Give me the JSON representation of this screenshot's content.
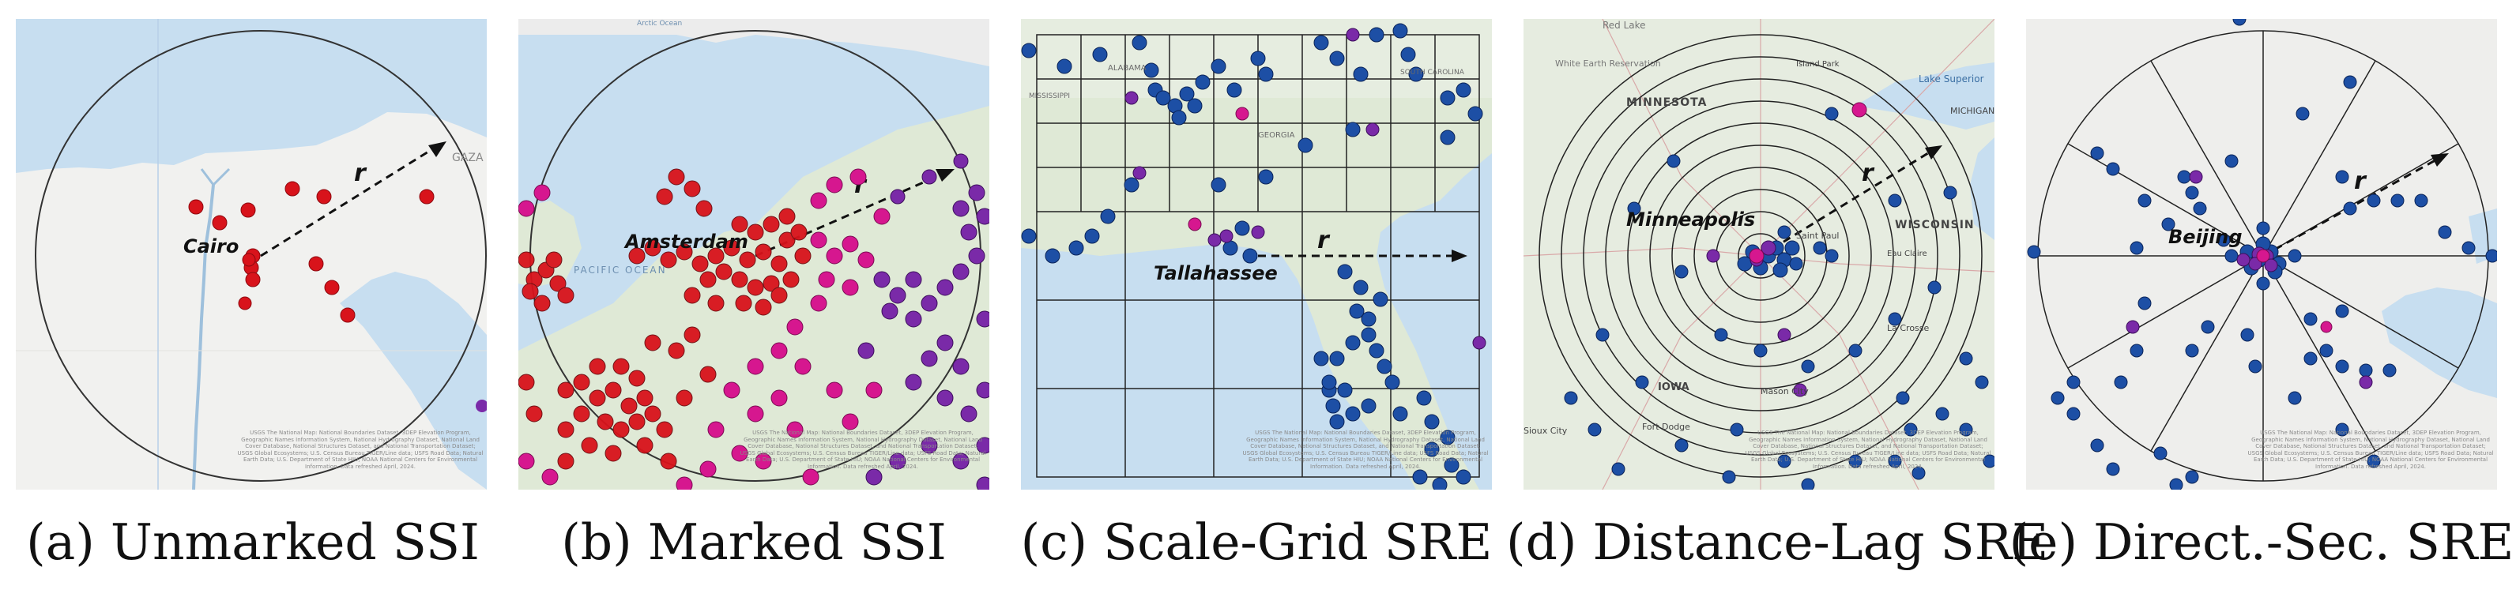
{
  "colors": {
    "water": "#c7def0",
    "land": "#f1f1ef",
    "land_green": "#dfe9d6",
    "red": "#d8131b",
    "magenta": "#d6178f",
    "purple": "#7a2aa8",
    "blue": "#1d4fa5",
    "navy": "#163a8c"
  },
  "panels": [
    {
      "id": "a",
      "city": "Cairo",
      "radius_label": "r",
      "caption": "(a) Unmarked SSI",
      "attribution": "USGS The National Map: National Boundaries Dataset, 3DEP Elevation Program, Geographic Names Information System, National Hydrography Dataset, National Land Cover Database, National Structures Dataset, and National Transportation Dataset; USGS Global Ecosystems; U.S. Census Bureau TIGER/Line data; USFS Road Data; Natural Earth Data; U.S. Department of State HIU; NOAA National Centers for Environmental Information. Data refreshed April, 2024.",
      "labels": [
        {
          "text": "GAZA"
        }
      ]
    },
    {
      "id": "b",
      "city": "Amsterdam",
      "radius_label": "r",
      "caption": "(b) Marked SSI",
      "attribution": "USGS The National Map: National Boundaries Dataset, 3DEP Elevation Program, Geographic Names Information System, National Hydrography Dataset, National Land Cover Database, National Structures Dataset, and National Transportation Dataset; USGS Global Ecosystems; U.S. Census Bureau TIGER/Line data; USFS Road Data; Natural Earth Data; U.S. Department of State HIU; NOAA National Centers for Environmental Information. Data refreshed April, 2024.",
      "labels": [
        {
          "text": "PACIFIC OCEAN"
        },
        {
          "text": "Arctic Ocean"
        }
      ]
    },
    {
      "id": "c",
      "city": "Tallahassee",
      "radius_label": "r",
      "caption": "(c) Scale-Grid SRE",
      "attribution": "USGS The National Map: National Boundaries Dataset, 3DEP Elevation Program, Geographic Names Information System, National Hydrography Dataset, National Land Cover Database, National Structures Dataset, and National Transportation Dataset; USGS Global Ecosystems; U.S. Census Bureau TIGER/Line data; USFS Road Data; Natural Earth Data; U.S. Department of State HIU; NOAA National Centers for Environmental Information. Data refreshed April, 2024.",
      "labels": [
        {
          "text": "ALABAMA"
        },
        {
          "text": "GEORGIA"
        },
        {
          "text": "SOUTH CAROLINA"
        },
        {
          "text": "MISSISSIPPI"
        }
      ]
    },
    {
      "id": "d",
      "city": "Minneapolis",
      "radius_label": "r",
      "caption": "(d) Distance-Lag SRE",
      "attribution": "USGS The National Map: National Boundaries Dataset, 3DEP Elevation Program, Geographic Names Information System, National Hydrography Dataset, National Land Cover Database, National Structures Dataset, and National Transportation Dataset; USGS Global Ecosystems; U.S. Census Bureau TIGER/Line data; USFS Road Data; Natural Earth Data; U.S. Department of State HIU; NOAA National Centers for Environmental Information. Data refreshed April, 2024.",
      "labels": [
        {
          "text": "Red Lake"
        },
        {
          "text": "White Earth Reservation"
        },
        {
          "text": "MINNESOTA"
        },
        {
          "text": "Lake Superior"
        },
        {
          "text": "MICHIGAN"
        },
        {
          "text": "WISCONSIN"
        },
        {
          "text": "IOWA"
        },
        {
          "text": "Saint Paul"
        },
        {
          "text": "Mason City"
        },
        {
          "text": "Fort Dodge"
        },
        {
          "text": "La Crosse"
        },
        {
          "text": "Eau Claire"
        },
        {
          "text": "Sioux City"
        },
        {
          "text": "Island Park"
        }
      ]
    },
    {
      "id": "e",
      "city": "Beijing",
      "radius_label": "r",
      "caption": "(e) Direct.-Sec. SRE",
      "attribution": "USGS The National Map: National Boundaries Dataset, 3DEP Elevation Program, Geographic Names Information System, National Hydrography Dataset, National Land Cover Database, National Structures Dataset, and National Transportation Dataset; USGS Global Ecosystems; U.S. Census Bureau TIGER/Line data; USFS Road Data; Natural Earth Data; U.S. Department of State HIU; NOAA National Centers for Environmental Information. Data refreshed April, 2024.",
      "labels": []
    }
  ]
}
